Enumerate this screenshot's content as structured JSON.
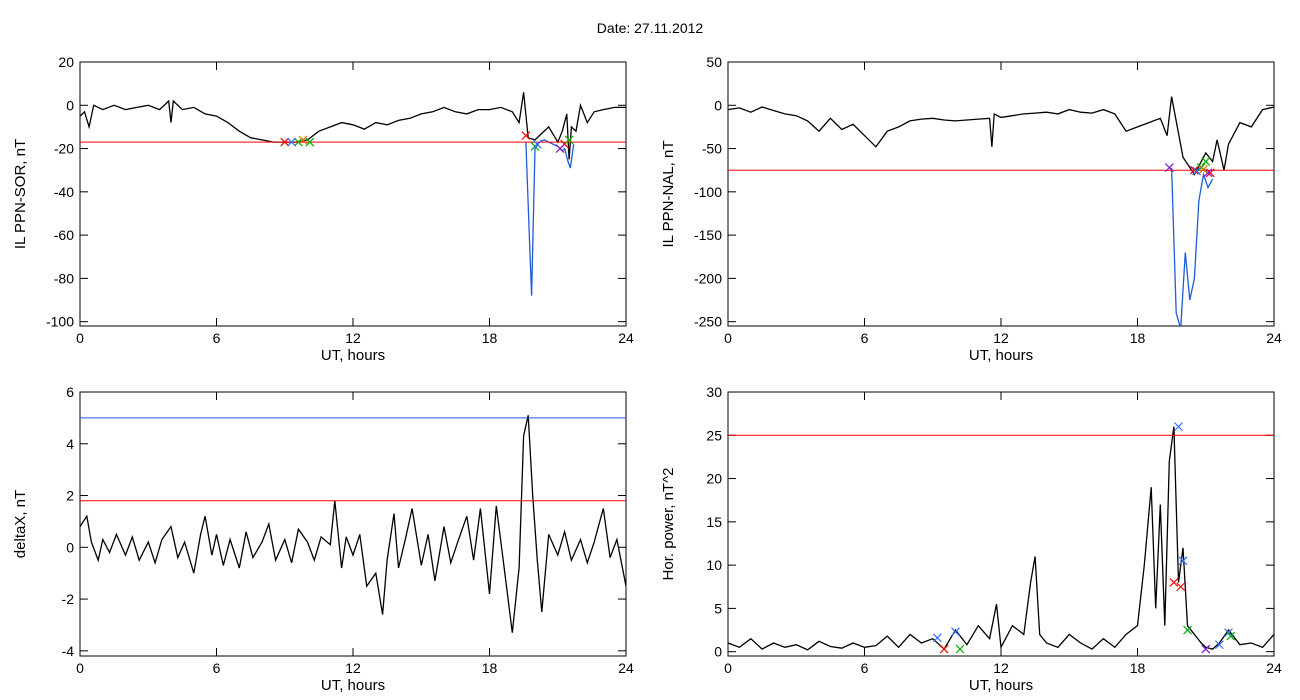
{
  "page": {
    "title": "Date:  27.11.2012"
  },
  "chart_data": [
    {
      "type": "line",
      "ylabel": "IL PPN-SOR, nT",
      "xlabel": "UT, hours",
      "xlim": [
        0,
        24
      ],
      "ylim": [
        -102,
        20
      ],
      "xticks": [
        0,
        6,
        12,
        18,
        24
      ],
      "yticks": [
        20,
        0,
        -20,
        -40,
        -60,
        -80,
        -100
      ],
      "series": [
        {
          "color": "#000000",
          "x": [
            0,
            0.2,
            0.4,
            0.6,
            1,
            1.5,
            2,
            2.5,
            3,
            3.5,
            3.9,
            4,
            4.1,
            4.5,
            5,
            5.5,
            6,
            6.5,
            7,
            7.5,
            8,
            8.5,
            9,
            9.5,
            10,
            10.5,
            11,
            11.5,
            12,
            12.5,
            13,
            13.5,
            14,
            14.5,
            15,
            15.5,
            16,
            16.5,
            17,
            17.5,
            18,
            18.5,
            19,
            19.3,
            19.5,
            19.7,
            20,
            20.3,
            20.6,
            21,
            21.2,
            21.4,
            21.5,
            21.6,
            21.8,
            22,
            22.3,
            22.6,
            23,
            23.5,
            24
          ],
          "y": [
            -5,
            -3,
            -10,
            0,
            -2,
            0,
            -2,
            -1,
            0,
            -2,
            2,
            -8,
            2,
            -2,
            -1,
            -4,
            -5,
            -8,
            -12,
            -15,
            -16,
            -17,
            -17,
            -17,
            -16,
            -12,
            -10,
            -8,
            -9,
            -11,
            -8,
            -9,
            -7,
            -6,
            -4,
            -3,
            -1,
            -3,
            -4,
            -2,
            -2,
            -1,
            -3,
            -8,
            6,
            -15,
            -16,
            -13,
            -10,
            -17,
            -12,
            -4,
            -25,
            -10,
            -12,
            0,
            -8,
            -3,
            -2,
            -1,
            -1
          ]
        },
        {
          "color": "#1f5cd6",
          "x": [
            19.6,
            19.75,
            19.85,
            20,
            20.2,
            20.4,
            21,
            21.2,
            21.3,
            21.45,
            21.55,
            21.7
          ],
          "y": [
            -17,
            -60,
            -88,
            -20,
            -17,
            -16,
            -19,
            -21,
            -20,
            -26,
            -29,
            -18
          ]
        },
        {
          "color": "#ff0000",
          "x": [
            0,
            24
          ],
          "y": [
            -17,
            -17
          ]
        }
      ],
      "markers": [
        {
          "color": "#ff0000",
          "x": [
            9,
            19.6,
            21.3
          ],
          "y": [
            -17,
            -14,
            -18
          ]
        },
        {
          "color": "#00b000",
          "x": [
            9.6,
            10.1,
            20,
            21.5
          ],
          "y": [
            -17,
            -17,
            -19,
            -16
          ]
        },
        {
          "color": "#3070ff",
          "x": [
            9.3,
            20.1
          ],
          "y": [
            -17,
            -18
          ]
        },
        {
          "color": "#7a1ad0",
          "x": [
            21.1
          ],
          "y": [
            -20
          ]
        },
        {
          "color": "#e07000",
          "x": [
            9.8
          ],
          "y": [
            -16
          ]
        }
      ]
    },
    {
      "type": "line",
      "ylabel": "IL PPN-NAL, nT",
      "xlabel": "UT, hours",
      "xlim": [
        0,
        24
      ],
      "ylim": [
        -255,
        50
      ],
      "xticks": [
        0,
        6,
        12,
        18,
        24
      ],
      "yticks": [
        50,
        0,
        -50,
        -100,
        -150,
        -200,
        -250
      ],
      "series": [
        {
          "color": "#000000",
          "x": [
            0,
            0.5,
            1,
            1.5,
            2,
            2.5,
            3,
            3.5,
            4,
            4.5,
            5,
            5.5,
            6,
            6.5,
            7,
            7.5,
            8,
            8.5,
            9,
            9.5,
            10,
            10.5,
            11,
            11.5,
            11.6,
            11.7,
            12,
            12.5,
            13,
            13.5,
            14,
            14.5,
            15,
            15.5,
            16,
            16.5,
            17,
            17.5,
            18,
            18.5,
            19,
            19.3,
            19.5,
            20,
            20.5,
            21,
            21.3,
            21.5,
            21.8,
            22,
            22.5,
            23,
            23.5,
            24
          ],
          "y": [
            -5,
            -3,
            -8,
            -2,
            -6,
            -10,
            -12,
            -18,
            -30,
            -15,
            -28,
            -22,
            -35,
            -48,
            -30,
            -25,
            -18,
            -16,
            -15,
            -17,
            -18,
            -17,
            -16,
            -15,
            -48,
            -10,
            -14,
            -12,
            -10,
            -9,
            -8,
            -10,
            -5,
            -8,
            -9,
            -5,
            -10,
            -30,
            -25,
            -20,
            -15,
            -35,
            10,
            -60,
            -80,
            -55,
            -65,
            -40,
            -75,
            -45,
            -20,
            -25,
            -5,
            -2
          ]
        },
        {
          "color": "#1f5cd6",
          "x": [
            19.5,
            19.7,
            19.9,
            20.1,
            20.3,
            20.5,
            20.7,
            20.9,
            21.1,
            21.3
          ],
          "y": [
            -72,
            -240,
            -258,
            -170,
            -225,
            -200,
            -110,
            -80,
            -95,
            -85
          ]
        },
        {
          "color": "#ff0000",
          "x": [
            0,
            24
          ],
          "y": [
            -75,
            -75
          ]
        }
      ],
      "markers": [
        {
          "color": "#ff0000",
          "x": [
            20.5,
            21.2
          ],
          "y": [
            -75,
            -78
          ]
        },
        {
          "color": "#00b000",
          "x": [
            20.8,
            21.0
          ],
          "y": [
            -72,
            -65
          ]
        },
        {
          "color": "#3070ff",
          "x": [
            20.6
          ],
          "y": [
            -76
          ]
        },
        {
          "color": "#7a1ad0",
          "x": [
            19.4,
            21.1
          ],
          "y": [
            -72,
            -78
          ]
        },
        {
          "color": "#e07000",
          "x": [
            20.9
          ],
          "y": [
            -74
          ]
        }
      ]
    },
    {
      "type": "line",
      "ylabel": "deltaX, nT",
      "xlabel": "UT, hours",
      "xlim": [
        0,
        24
      ],
      "ylim": [
        -4.2,
        6
      ],
      "xticks": [
        0,
        6,
        12,
        18,
        24
      ],
      "yticks": [
        6,
        4,
        2,
        0,
        -2,
        -4
      ],
      "series": [
        {
          "color": "#000000",
          "x": [
            0,
            0.3,
            0.5,
            0.8,
            1,
            1.3,
            1.6,
            2,
            2.3,
            2.6,
            3,
            3.3,
            3.6,
            4,
            4.3,
            4.6,
            5,
            5.3,
            5.5,
            5.8,
            6,
            6.3,
            6.6,
            7,
            7.3,
            7.6,
            8,
            8.3,
            8.6,
            9,
            9.3,
            9.6,
            10,
            10.3,
            10.6,
            11,
            11.2,
            11.5,
            11.7,
            12,
            12.3,
            12.6,
            13,
            13.3,
            13.5,
            13.8,
            14,
            14.3,
            14.6,
            15,
            15.3,
            15.6,
            16,
            16.3,
            16.6,
            17,
            17.3,
            17.6,
            18,
            18.3,
            18.6,
            19,
            19.3,
            19.5,
            19.7,
            19.9,
            20.1,
            20.3,
            20.6,
            21,
            21.3,
            21.6,
            22,
            22.3,
            22.6,
            23,
            23.3,
            23.6,
            24
          ],
          "y": [
            0.8,
            1.2,
            0.2,
            -0.5,
            0.3,
            -0.2,
            0.5,
            -0.3,
            0.4,
            -0.5,
            0.2,
            -0.6,
            0.3,
            0.8,
            -0.4,
            0.2,
            -1,
            0.5,
            1.2,
            -0.3,
            0.5,
            -0.7,
            0.3,
            -0.8,
            0.6,
            -0.4,
            0.2,
            0.9,
            -0.5,
            0.3,
            -0.6,
            0.7,
            0.2,
            -0.5,
            0.4,
            0.1,
            1.8,
            -0.8,
            0.4,
            -0.3,
            0.5,
            -1.5,
            -1,
            -2.6,
            -0.5,
            1.3,
            -0.8,
            0.3,
            1.5,
            -0.7,
            0.5,
            -1.3,
            0.8,
            -0.6,
            0.2,
            1.2,
            -0.5,
            1.5,
            -1.8,
            1.6,
            -0.5,
            -3.3,
            -0.8,
            4.3,
            5.1,
            2,
            -0.5,
            -2.5,
            0.5,
            -0.3,
            0.6,
            -0.5,
            0.3,
            -0.6,
            0.2,
            1.5,
            -0.4,
            0.3,
            -1.5
          ]
        },
        {
          "color": "#1f5cd6",
          "x": [
            0,
            24
          ],
          "y": [
            5,
            5
          ]
        },
        {
          "color": "#ff0000",
          "x": [
            0,
            24
          ],
          "y": [
            1.8,
            1.8
          ]
        }
      ],
      "markers": []
    },
    {
      "type": "line",
      "ylabel": "Hor. power, nT^2",
      "xlabel": "UT, hours",
      "xlim": [
        0,
        24
      ],
      "ylim": [
        -0.5,
        30
      ],
      "xticks": [
        0,
        6,
        12,
        18,
        24
      ],
      "yticks": [
        30,
        25,
        20,
        15,
        10,
        5,
        0
      ],
      "series": [
        {
          "color": "#000000",
          "x": [
            0,
            0.5,
            1,
            1.5,
            2,
            2.5,
            3,
            3.5,
            4,
            4.5,
            5,
            5.5,
            6,
            6.5,
            7,
            7.5,
            8,
            8.5,
            9,
            9.5,
            10,
            10.5,
            11,
            11.5,
            11.8,
            12,
            12.5,
            13,
            13.3,
            13.5,
            13.7,
            14,
            14.5,
            15,
            15.5,
            16,
            16.5,
            17,
            17.5,
            18,
            18.3,
            18.6,
            18.8,
            19,
            19.2,
            19.4,
            19.6,
            19.8,
            20,
            20.2,
            20.5,
            20.8,
            21,
            21.3,
            21.6,
            22,
            22.5,
            23,
            23.5,
            24
          ],
          "y": [
            1,
            0.5,
            1.5,
            0.3,
            1,
            0.5,
            0.8,
            0.2,
            1.2,
            0.6,
            0.4,
            1,
            0.5,
            0.7,
            1.8,
            0.5,
            2,
            1,
            1.5,
            0.3,
            2.5,
            0.8,
            3,
            1.5,
            5.5,
            0.5,
            3,
            2,
            8,
            11,
            2,
            1,
            0.5,
            2,
            1,
            0.3,
            1.5,
            0.5,
            2,
            3,
            10,
            19,
            5,
            17,
            3,
            22,
            26,
            8,
            12,
            3,
            2,
            1,
            0.5,
            0.3,
            1,
            2.5,
            0.8,
            1,
            0.5,
            2
          ]
        },
        {
          "color": "#ff0000",
          "x": [
            0,
            24
          ],
          "y": [
            25,
            25
          ]
        }
      ],
      "markers": [
        {
          "color": "#3070ff",
          "x": [
            9.2,
            10,
            19.8,
            20,
            21.6,
            22
          ],
          "y": [
            1.6,
            2.3,
            26,
            10.5,
            0.8,
            2.2
          ]
        },
        {
          "color": "#ff0000",
          "x": [
            19.6,
            19.9,
            9.5
          ],
          "y": [
            8,
            7.5,
            0.3
          ]
        },
        {
          "color": "#00b000",
          "x": [
            20.2,
            10.2,
            22.1
          ],
          "y": [
            2.5,
            0.3,
            1.8
          ]
        },
        {
          "color": "#7a1ad0",
          "x": [
            21
          ],
          "y": [
            0.3
          ]
        }
      ]
    }
  ]
}
